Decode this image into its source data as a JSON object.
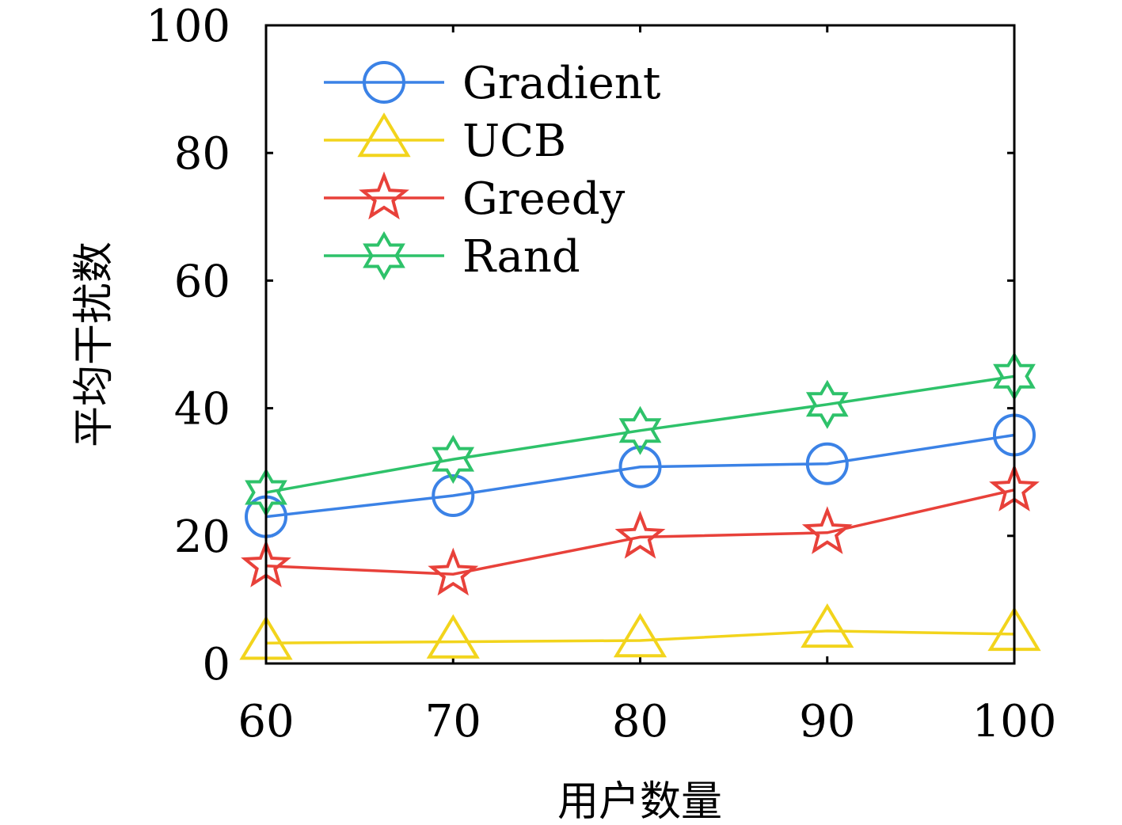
{
  "chart_data": {
    "type": "line",
    "title": "",
    "xlabel": "用户数量",
    "ylabel": "平均干扰数",
    "x": [
      60,
      70,
      80,
      90,
      100
    ],
    "xlim": [
      60,
      100
    ],
    "ylim": [
      0,
      100
    ],
    "xticks": [
      "60",
      "70",
      "80",
      "90",
      "100"
    ],
    "yticks": [
      "0",
      "20",
      "40",
      "60",
      "80",
      "100"
    ],
    "grid": false,
    "legend_position": "top-left",
    "series": [
      {
        "name": "Gradient",
        "color": "#3b82e6",
        "marker": "circle",
        "values": [
          23,
          26.3,
          30.8,
          31.3,
          35.8
        ]
      },
      {
        "name": "UCB",
        "color": "#f2d41c",
        "marker": "triangle",
        "values": [
          3.2,
          3.4,
          3.6,
          5.1,
          4.6
        ]
      },
      {
        "name": "Greedy",
        "color": "#e8413a",
        "marker": "star",
        "values": [
          15.3,
          14.0,
          19.8,
          20.5,
          27.2
        ]
      },
      {
        "name": "Rand",
        "color": "#2ec26a",
        "marker": "hexagram",
        "values": [
          26.8,
          32.0,
          36.5,
          40.6,
          45.0
        ]
      }
    ]
  }
}
